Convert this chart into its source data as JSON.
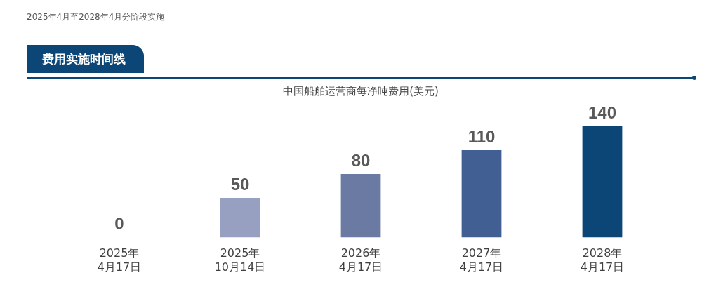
{
  "chart_data": {
    "type": "bar",
    "title": "费用实施时间线",
    "subtitle": "中国船舶运营商每净吨费用(美元)",
    "annotations": [
      "2025年4月至2028年4月分阶段实施"
    ],
    "categories": [
      "2025年\n4月17日",
      "2025年\n10月14日",
      "2026年\n4月17日",
      "2027年\n4月17日",
      "2028年\n4月17日"
    ],
    "values": [
      0,
      50,
      80,
      110,
      140
    ],
    "colors": [
      "#97a0c0",
      "#97a0c0",
      "#6b7aa3",
      "#425f93",
      "#0b4677"
    ],
    "data_labels": true,
    "grid": false,
    "legend": false
  }
}
